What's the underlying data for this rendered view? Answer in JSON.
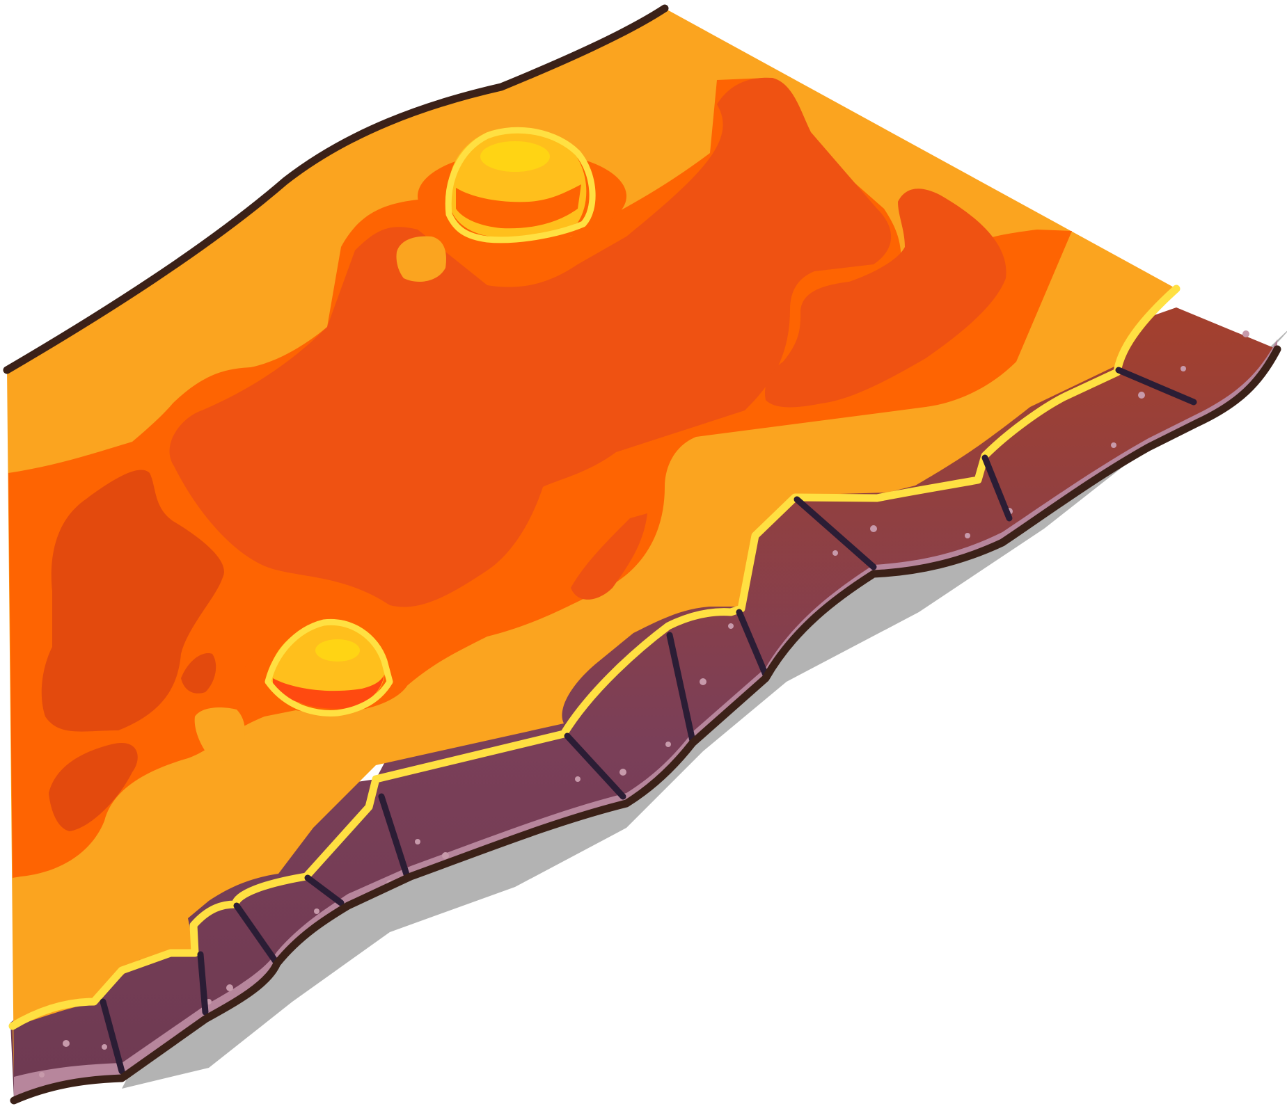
{
  "image": {
    "subject": "lava-floor-tile",
    "colors": {
      "background": "#ffffff",
      "outline": "#3b2118",
      "lava_light": "#fba41f",
      "lava_mid": "#fe6402",
      "lava_dark": "#ef5212",
      "lava_deep": "#e34a0d",
      "rim_yellow": "#ffe042",
      "rock_red": "#a4402d",
      "rock_plum": "#7a3f58",
      "rock_pink": "#b7869c",
      "crack_line": "#2b1d35",
      "bubble_gold": "#ffbf1c",
      "bubble_core": "#ffd414",
      "shadow": "#b3b3b3"
    }
  }
}
